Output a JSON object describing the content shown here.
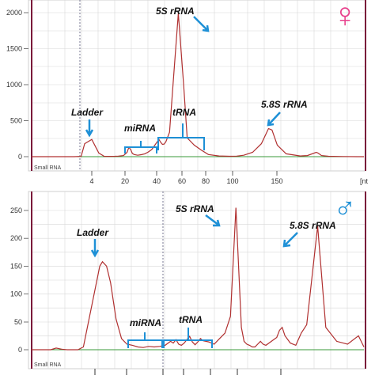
{
  "chart_data": [
    {
      "type": "line",
      "panel_label": "Small RNA",
      "axis_unit": "[nt",
      "symbol": "♀",
      "symbol_color": "#e8408c",
      "line_color": "#b03030",
      "baseline_color": "#3a9a3a",
      "annotation_color": "#1e90d6",
      "grid": true,
      "ylim": [
        -60,
        2100
      ],
      "yticks": [
        "0",
        "500",
        "1000",
        "1500",
        "2000"
      ],
      "xticks": [
        "4",
        "20",
        "40",
        "60",
        "80",
        "100",
        "150"
      ],
      "series": [
        {
          "x": [
            0,
            4,
            8,
            12,
            16,
            20,
            24,
            28,
            30,
            34,
            38,
            41,
            44,
            47,
            49,
            52,
            54,
            55,
            56,
            57,
            58,
            60,
            62,
            64,
            66,
            68,
            70,
            72,
            73,
            74,
            75,
            76,
            78,
            80,
            83,
            86,
            88,
            92,
            96,
            100,
            106,
            112,
            116,
            120,
            125,
            130,
            134,
            136,
            139,
            144,
            152,
            156,
            161,
            162,
            164,
            168,
            176,
            184,
            188
          ],
          "y": [
            0,
            0,
            0,
            0,
            0,
            0,
            0,
            4,
            180,
            240,
            50,
            5,
            4,
            5,
            8,
            15,
            60,
            130,
            100,
            45,
            30,
            20,
            28,
            40,
            65,
            100,
            170,
            240,
            200,
            170,
            175,
            210,
            340,
            1000,
            1990,
            1000,
            260,
            160,
            90,
            30,
            10,
            5,
            8,
            20,
            60,
            180,
            390,
            370,
            160,
            40,
            10,
            15,
            60,
            50,
            15,
            5,
            2,
            0,
            0
          ]
        }
      ],
      "annotations": [
        "5S rRNA",
        "5.8S rRNA",
        "Ladder",
        "miRNA",
        "tRNA"
      ]
    },
    {
      "type": "line",
      "panel_label": "Small RNA",
      "symbol": "♂",
      "symbol_color": "#1e90d6",
      "line_color": "#b03030",
      "baseline_color": "#3a9a3a",
      "annotation_color": "#1e90d6",
      "grid": true,
      "ylim": [
        -10,
        270
      ],
      "yticks": [
        "0",
        "50",
        "100",
        "150",
        "200",
        "250"
      ],
      "series": [
        {
          "x": [
            0,
            14,
            18,
            22,
            26,
            30,
            34,
            38,
            50,
            52,
            55,
            58,
            62,
            66,
            70,
            74,
            78,
            82,
            86,
            90,
            94,
            98,
            102,
            104,
            106,
            108,
            110,
            112,
            114,
            116,
            118,
            120,
            122,
            124,
            126,
            130,
            134,
            138,
            142,
            146,
            150,
            154,
            156,
            158,
            160,
            162,
            164,
            166,
            168,
            170,
            172,
            176,
            180,
            182,
            184,
            186,
            190,
            194,
            198,
            202,
            210,
            216,
            224,
            232,
            240,
            244
          ],
          "y": [
            0,
            0,
            3,
            1,
            0,
            0,
            0,
            5,
            150,
            158,
            150,
            120,
            55,
            20,
            10,
            8,
            5,
            4,
            6,
            5,
            6,
            8,
            15,
            12,
            18,
            10,
            8,
            12,
            18,
            24,
            14,
            9,
            14,
            20,
            16,
            14,
            10,
            20,
            30,
            60,
            255,
            40,
            15,
            10,
            8,
            5,
            5,
            10,
            15,
            10,
            8,
            15,
            22,
            35,
            40,
            25,
            12,
            8,
            30,
            45,
            222,
            40,
            15,
            10,
            25,
            5
          ]
        }
      ],
      "annotations": [
        "5S rRNA",
        "5.8S rRNA",
        "Ladder",
        "miRNA",
        "tRNA"
      ]
    }
  ]
}
